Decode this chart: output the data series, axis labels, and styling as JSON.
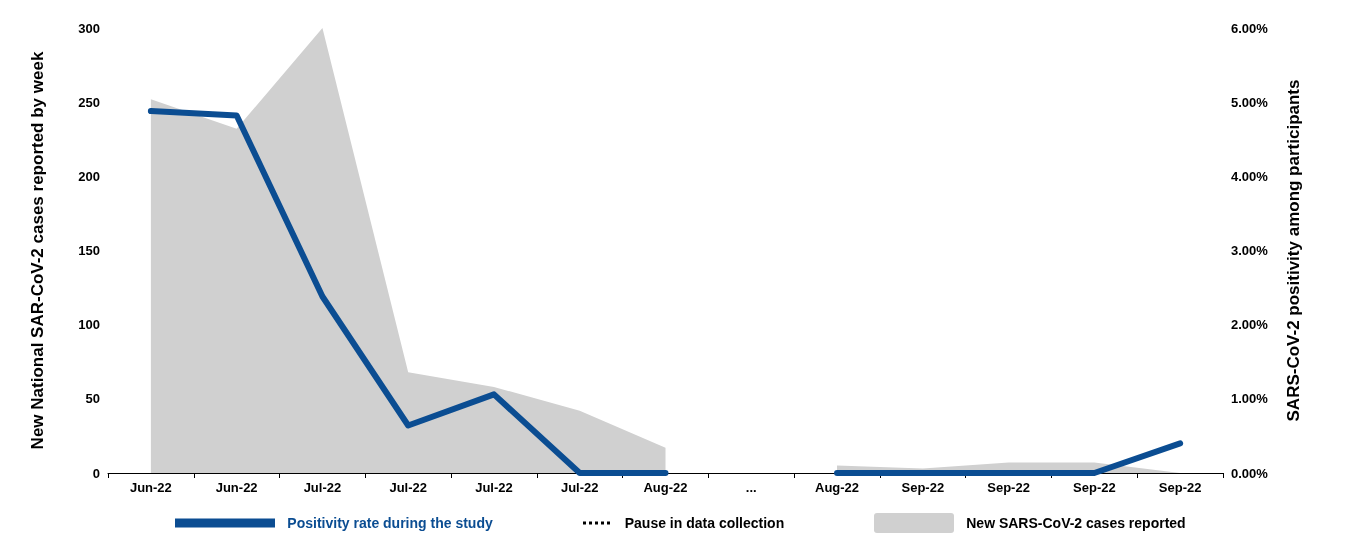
{
  "chart_data": {
    "type": "line",
    "ylabel": "New National SAR-CoV-2 cases reported by week",
    "y2label": "SARS-CoV-2 positivity among participants",
    "categories": [
      "Jun-22",
      "Jun-22",
      "Jul-22",
      "Jul-22",
      "Jul-22",
      "Jul-22",
      "Aug-22",
      "...",
      "Aug-22",
      "Sep-22",
      "Sep-22",
      "Sep-22",
      "Sep-22"
    ],
    "series": [
      {
        "name": "Positivity rate during the study",
        "type": "line",
        "axis": "y2",
        "color": "#0b4d92",
        "line_style": "solid",
        "values": [
          4.88,
          4.82,
          2.38,
          0.64,
          1.06,
          0,
          0,
          null,
          0,
          0,
          0,
          0,
          0.4
        ]
      },
      {
        "name": "Pause in data collection",
        "type": "line",
        "axis": "y2",
        "color": "#000000",
        "line_style": "dotted",
        "values": [
          null,
          null,
          null,
          null,
          null,
          null,
          null,
          null,
          null,
          null,
          null,
          null,
          null
        ]
      },
      {
        "name": "New SARS-CoV-2 cases reported",
        "type": "area",
        "axis": "y",
        "color": "#d0d0d0",
        "values": [
          252,
          232,
          300,
          68,
          58,
          42,
          17,
          null,
          5,
          3,
          7,
          7,
          0
        ]
      }
    ],
    "ylim": [
      0,
      300
    ],
    "yticks": [
      0,
      50,
      100,
      150,
      200,
      250,
      300
    ],
    "y2lim": [
      0,
      6
    ],
    "y2ticks": [
      {
        "value": 0,
        "label": "0.00%"
      },
      {
        "value": 1,
        "label": "1.00%"
      },
      {
        "value": 2,
        "label": "2.00%"
      },
      {
        "value": 3,
        "label": "3.00%"
      },
      {
        "value": 4,
        "label": "4.00%"
      },
      {
        "value": 5,
        "label": "5.00%"
      },
      {
        "value": 6,
        "label": "6.00%"
      }
    ],
    "grid": false,
    "legend": "bottom",
    "marker": "none"
  }
}
